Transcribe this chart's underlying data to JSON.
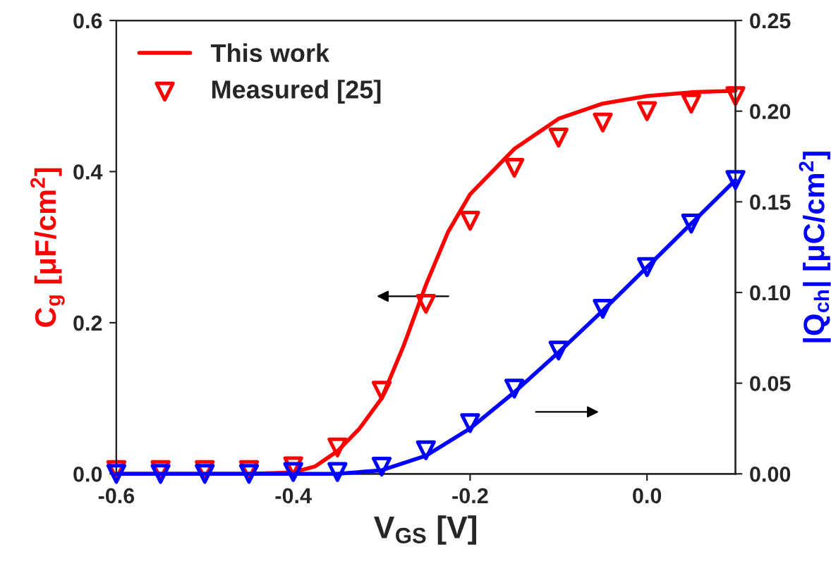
{
  "chart_data": {
    "type": "line",
    "xlabel": "V$_{GS}$ [V]",
    "ylabel": "C$_{g}$ [μF/cm$^{2}$]",
    "y2label": "|Q$_{ch}$| [μC/cm$^{2}$]",
    "xlim": [
      -0.6,
      0.1
    ],
    "xticks": [
      {
        "value": -0.6,
        "label": "-0.6"
      },
      {
        "value": -0.4,
        "label": "-0.4"
      },
      {
        "value": -0.2,
        "label": "-0.2"
      },
      {
        "value": 0.0,
        "label": "0.0"
      }
    ],
    "ylim": [
      0,
      0.6
    ],
    "yticks": [
      {
        "value": 0,
        "label": "0.0"
      },
      {
        "value": 0.2,
        "label": "0.2"
      },
      {
        "value": 0.4,
        "label": "0.4"
      },
      {
        "value": 0.6,
        "label": "0.6"
      }
    ],
    "y2lim": [
      0,
      0.25
    ],
    "y2ticks": [
      {
        "value": 0,
        "label": "0.00"
      },
      {
        "value": 0.05,
        "label": "0.05"
      },
      {
        "value": 0.1,
        "label": "0.10"
      },
      {
        "value": 0.15,
        "label": "0.15"
      },
      {
        "value": 0.2,
        "label": "0.20"
      },
      {
        "value": 0.25,
        "label": "0.25"
      }
    ],
    "legend": "top left",
    "grid": false,
    "series": [
      {
        "name": "This work",
        "color": "#ff0000",
        "line_style": "solid",
        "x": [
          -0.6,
          -0.5,
          -0.45,
          -0.4,
          -0.375,
          -0.35,
          -0.325,
          -0.3,
          -0.275,
          -0.25,
          -0.225,
          -0.2,
          -0.15,
          -0.1,
          -0.05,
          0.0,
          0.05,
          0.1
        ],
        "values": [
          0,
          0,
          0,
          0.002,
          0.01,
          0.03,
          0.06,
          0.1,
          0.17,
          0.25,
          0.32,
          0.37,
          0.43,
          0.47,
          0.49,
          0.5,
          0.505,
          0.507
        ]
      },
      {
        "name": "Measured [25]",
        "type": "scatter",
        "marker": "triangle",
        "color": "#ff0000",
        "x": [
          -0.6,
          -0.55,
          -0.5,
          -0.45,
          -0.4,
          -0.35,
          -0.3,
          -0.25,
          -0.2,
          -0.15,
          -0.1,
          -0.05,
          0.0,
          0.05,
          0.1
        ],
        "values": [
          0.005,
          0.005,
          0.005,
          0.005,
          0.01,
          0.035,
          0.11,
          0.225,
          0.335,
          0.405,
          0.445,
          0.465,
          0.48,
          0.49,
          0.5
        ]
      },
      {
        "axis": "y2",
        "color": "#0000ff",
        "line_style": "solid",
        "x": [
          -0.6,
          -0.4,
          -0.35,
          -0.3,
          -0.25,
          -0.2,
          -0.15,
          -0.1,
          -0.05,
          0.0,
          0.05,
          0.1
        ],
        "values": [
          0,
          0,
          0,
          0.002,
          0.01,
          0.025,
          0.045,
          0.067,
          0.09,
          0.114,
          0.138,
          0.162
        ]
      },
      {
        "type": "scatter",
        "axis": "y2",
        "marker": "triangle",
        "color": "#0000ff",
        "x": [
          -0.6,
          -0.55,
          -0.5,
          -0.45,
          -0.4,
          -0.35,
          -0.3,
          -0.25,
          -0.2,
          -0.15,
          -0.1,
          -0.05,
          0.0,
          0.05,
          0.1
        ],
        "values": [
          0,
          0,
          0,
          0,
          0.001,
          0.001,
          0.004,
          0.013,
          0.028,
          0.047,
          0.068,
          0.091,
          0.114,
          0.138,
          0.162
        ]
      }
    ]
  }
}
